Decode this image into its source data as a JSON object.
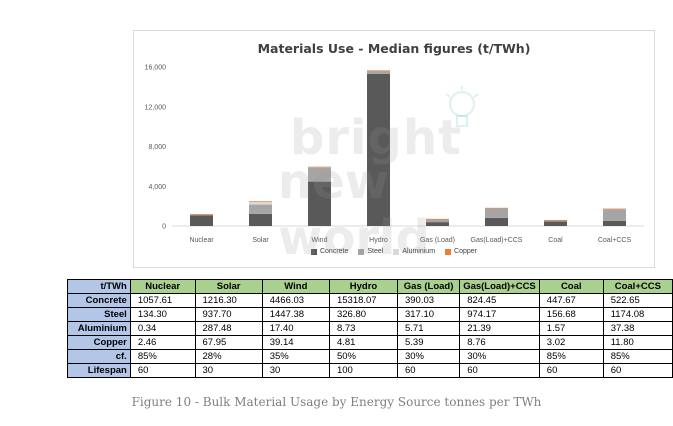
{
  "chart_data": {
    "type": "bar",
    "stacked": true,
    "title": "Materials Use - Median figures (t/TWh)",
    "categories": [
      "Nuclear",
      "Solar",
      "Wind",
      "Hydro",
      "Gas (Load)",
      "Gas(Load)+CCS",
      "Coal",
      "Coal+CCS"
    ],
    "series": [
      {
        "name": "Concrete",
        "color": "#595959",
        "values": [
          1057.61,
          1216.3,
          4466.03,
          15318.07,
          390.03,
          824.45,
          447.67,
          522.65
        ]
      },
      {
        "name": "Steel",
        "color": "#a5a5a5",
        "values": [
          134.3,
          937.7,
          1447.38,
          326.8,
          317.1,
          974.17,
          156.68,
          1174.08
        ]
      },
      {
        "name": "Aluminium",
        "color": "#d9d9d9",
        "values": [
          0.34,
          287.48,
          17.4,
          8.73,
          5.71,
          21.39,
          1.57,
          37.38
        ]
      },
      {
        "name": "Copper",
        "color": "#ed7d31",
        "values": [
          2.46,
          67.95,
          39.14,
          4.81,
          5.39,
          8.76,
          3.02,
          11.8
        ]
      }
    ],
    "ylim": [
      0,
      16000
    ],
    "yticks": [
      "0",
      "4,000",
      "8,000",
      "12,000",
      "16,000"
    ],
    "ytick_values": [
      0,
      4000,
      8000,
      12000,
      16000
    ],
    "grid": false,
    "legend_position": "bottom"
  },
  "watermark": {
    "line1": "bright",
    "line2": "new world"
  },
  "table": {
    "corner": "t/TWh",
    "columns": [
      "Nuclear",
      "Solar",
      "Wind",
      "Hydro",
      "Gas (Load)",
      "Gas(Load)+CCS",
      "Coal",
      "Coal+CCS"
    ],
    "rows": [
      {
        "label": "Concrete",
        "values": [
          "1057.61",
          "1216.30",
          "4466.03",
          "15318.07",
          "390.03",
          "824.45",
          "447.67",
          "522.65"
        ]
      },
      {
        "label": "Steel",
        "values": [
          "134.30",
          "937.70",
          "1447.38",
          "326.80",
          "317.10",
          "974.17",
          "156.68",
          "1174.08"
        ]
      },
      {
        "label": "Aluminium",
        "values": [
          "0.34",
          "287.48",
          "17.40",
          "8.73",
          "5.71",
          "21.39",
          "1.57",
          "37.38"
        ]
      },
      {
        "label": "Copper",
        "values": [
          "2.46",
          "67.95",
          "39.14",
          "4.81",
          "5.39",
          "8.76",
          "3.02",
          "11.80"
        ]
      },
      {
        "label": "cf.",
        "values": [
          "85%",
          "28%",
          "35%",
          "50%",
          "30%",
          "30%",
          "85%",
          "85%"
        ]
      },
      {
        "label": "Lifespan",
        "values": [
          "60",
          "30",
          "30",
          "100",
          "60",
          "60",
          "60",
          "60"
        ]
      }
    ]
  },
  "caption": "Figure 10 - Bulk Material Usage by Energy Source tonnes per TWh"
}
